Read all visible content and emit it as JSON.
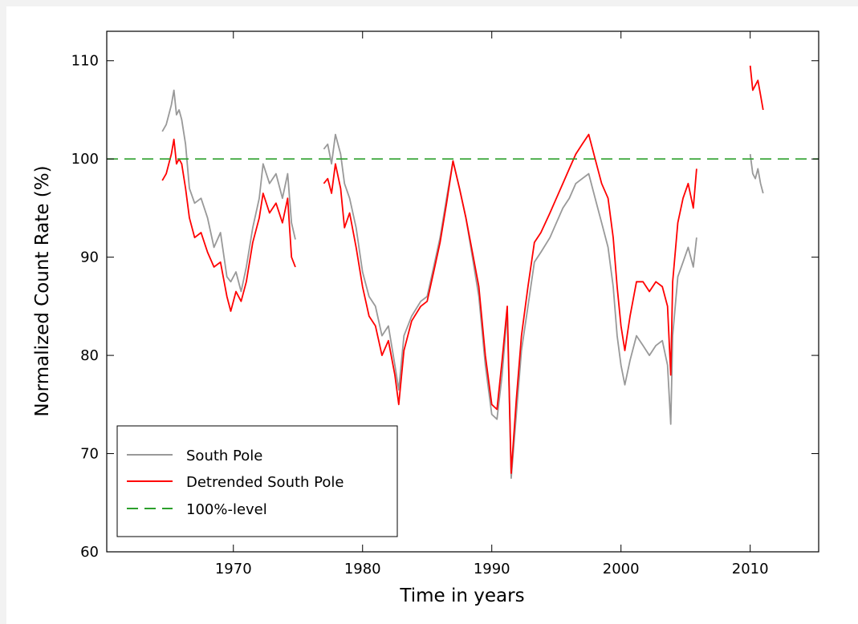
{
  "chart_data": {
    "type": "line",
    "title": "",
    "xlabel": "Time in years",
    "ylabel": "Normalized Count Rate (%)",
    "xlim": [
      1960.2,
      2015.3
    ],
    "ylim": [
      60,
      113
    ],
    "xticks": [
      1970,
      1980,
      1990,
      2000,
      2010
    ],
    "yticks": [
      60,
      70,
      80,
      90,
      100,
      110
    ],
    "grid": false,
    "legend": {
      "position": "bottom-left"
    },
    "reference_line": {
      "name": "100%-level",
      "y": 100,
      "color": "#2ca02c",
      "style": "dashed"
    },
    "series": [
      {
        "name": "South Pole",
        "color": "#999999",
        "segments": [
          [
            [
              1964.5,
              102.8
            ],
            [
              1964.8,
              103.5
            ],
            [
              1965.0,
              104.5
            ],
            [
              1965.2,
              105.5
            ],
            [
              1965.4,
              107.0
            ],
            [
              1965.6,
              104.5
            ],
            [
              1965.8,
              105.0
            ],
            [
              1966.0,
              104.0
            ],
            [
              1966.3,
              101.5
            ],
            [
              1966.6,
              97.0
            ],
            [
              1967.0,
              95.5
            ],
            [
              1967.5,
              96.0
            ],
            [
              1968.0,
              94.0
            ],
            [
              1968.5,
              91.0
            ],
            [
              1969.0,
              92.5
            ],
            [
              1969.5,
              88.0
            ],
            [
              1969.8,
              87.5
            ],
            [
              1970.2,
              88.5
            ],
            [
              1970.6,
              86.5
            ],
            [
              1971.0,
              89.0
            ],
            [
              1971.5,
              93.0
            ],
            [
              1972.0,
              96.0
            ],
            [
              1972.3,
              99.5
            ],
            [
              1972.8,
              97.5
            ],
            [
              1973.3,
              98.5
            ],
            [
              1973.8,
              96.0
            ],
            [
              1974.2,
              98.5
            ],
            [
              1974.5,
              93.5
            ],
            [
              1974.8,
              91.8
            ]
          ],
          [
            [
              1977.0,
              101.0
            ],
            [
              1977.3,
              101.5
            ],
            [
              1977.6,
              99.5
            ],
            [
              1977.9,
              102.5
            ],
            [
              1978.3,
              100.5
            ],
            [
              1978.6,
              97.5
            ],
            [
              1979.0,
              96.0
            ],
            [
              1979.5,
              93.0
            ],
            [
              1980.0,
              88.5
            ],
            [
              1980.5,
              86.0
            ],
            [
              1981.0,
              85.0
            ],
            [
              1981.5,
              82.0
            ],
            [
              1982.0,
              83.0
            ],
            [
              1982.5,
              79.0
            ],
            [
              1982.8,
              76.5
            ],
            [
              1983.2,
              82.0
            ],
            [
              1983.8,
              84.0
            ],
            [
              1984.5,
              85.5
            ],
            [
              1985.0,
              86.0
            ],
            [
              1985.5,
              89.0
            ],
            [
              1986.0,
              92.0
            ],
            [
              1986.5,
              96.0
            ],
            [
              1987.0,
              99.8
            ],
            [
              1987.5,
              97.0
            ],
            [
              1988.0,
              94.0
            ],
            [
              1988.5,
              90.0
            ],
            [
              1989.0,
              86.0
            ],
            [
              1989.5,
              79.0
            ],
            [
              1990.0,
              74.0
            ],
            [
              1990.4,
              73.5
            ],
            [
              1990.8,
              78.0
            ],
            [
              1991.2,
              84.5
            ],
            [
              1991.5,
              67.5
            ],
            [
              1991.9,
              74.0
            ],
            [
              1992.3,
              80.5
            ],
            [
              1992.8,
              85.0
            ],
            [
              1993.3,
              89.5
            ],
            [
              1993.8,
              90.5
            ],
            [
              1994.5,
              92.0
            ],
            [
              1995.0,
              93.5
            ],
            [
              1995.5,
              95.0
            ],
            [
              1996.0,
              96.0
            ],
            [
              1996.5,
              97.5
            ],
            [
              1997.0,
              98.0
            ],
            [
              1997.5,
              98.5
            ],
            [
              1998.0,
              96.0
            ],
            [
              1998.5,
              93.5
            ],
            [
              1999.0,
              91.0
            ],
            [
              1999.4,
              87.0
            ],
            [
              1999.7,
              82.0
            ],
            [
              2000.0,
              79.0
            ],
            [
              2000.3,
              77.0
            ],
            [
              2000.7,
              79.5
            ],
            [
              2001.2,
              82.0
            ],
            [
              2001.7,
              81.0
            ],
            [
              2002.2,
              80.0
            ],
            [
              2002.7,
              81.0
            ],
            [
              2003.2,
              81.5
            ],
            [
              2003.6,
              79.0
            ],
            [
              2003.85,
              73.0
            ],
            [
              2004.0,
              82.0
            ],
            [
              2004.4,
              88.0
            ],
            [
              2004.8,
              89.5
            ],
            [
              2005.2,
              91.0
            ],
            [
              2005.6,
              89.0
            ],
            [
              2005.85,
              92.0
            ]
          ],
          [
            [
              2010.0,
              100.5
            ],
            [
              2010.2,
              98.5
            ],
            [
              2010.4,
              98.0
            ],
            [
              2010.6,
              99.0
            ],
            [
              2010.8,
              97.5
            ],
            [
              2011.0,
              96.5
            ]
          ]
        ]
      },
      {
        "name": "Detrended South Pole",
        "color": "#ff0000",
        "segments": [
          [
            [
              1964.5,
              97.8
            ],
            [
              1964.8,
              98.5
            ],
            [
              1965.0,
              99.5
            ],
            [
              1965.2,
              100.5
            ],
            [
              1965.4,
              102.0
            ],
            [
              1965.6,
              99.5
            ],
            [
              1965.8,
              100.0
            ],
            [
              1966.0,
              99.5
            ],
            [
              1966.3,
              97.0
            ],
            [
              1966.6,
              94.0
            ],
            [
              1967.0,
              92.0
            ],
            [
              1967.5,
              92.5
            ],
            [
              1968.0,
              90.5
            ],
            [
              1968.5,
              89.0
            ],
            [
              1969.0,
              89.5
            ],
            [
              1969.5,
              86.0
            ],
            [
              1969.8,
              84.5
            ],
            [
              1970.2,
              86.5
            ],
            [
              1970.6,
              85.5
            ],
            [
              1971.0,
              87.5
            ],
            [
              1971.5,
              91.5
            ],
            [
              1972.0,
              94.0
            ],
            [
              1972.3,
              96.5
            ],
            [
              1972.8,
              94.5
            ],
            [
              1973.3,
              95.5
            ],
            [
              1973.8,
              93.5
            ],
            [
              1974.2,
              96.0
            ],
            [
              1974.5,
              90.0
            ],
            [
              1974.8,
              89.0
            ]
          ],
          [
            [
              1977.0,
              97.5
            ],
            [
              1977.3,
              98.0
            ],
            [
              1977.6,
              96.5
            ],
            [
              1977.9,
              99.5
            ],
            [
              1978.3,
              97.0
            ],
            [
              1978.6,
              93.0
            ],
            [
              1979.0,
              94.5
            ],
            [
              1979.5,
              91.0
            ],
            [
              1980.0,
              87.0
            ],
            [
              1980.5,
              84.0
            ],
            [
              1981.0,
              83.0
            ],
            [
              1981.5,
              80.0
            ],
            [
              1982.0,
              81.5
            ],
            [
              1982.5,
              78.0
            ],
            [
              1982.8,
              75.0
            ],
            [
              1983.2,
              80.5
            ],
            [
              1983.8,
              83.5
            ],
            [
              1984.5,
              85.0
            ],
            [
              1985.0,
              85.5
            ],
            [
              1985.5,
              88.5
            ],
            [
              1986.0,
              91.5
            ],
            [
              1986.5,
              95.5
            ],
            [
              1987.0,
              99.8
            ],
            [
              1987.5,
              97.0
            ],
            [
              1988.0,
              94.0
            ],
            [
              1988.5,
              90.5
            ],
            [
              1989.0,
              87.0
            ],
            [
              1989.5,
              80.0
            ],
            [
              1990.0,
              75.0
            ],
            [
              1990.4,
              74.5
            ],
            [
              1990.8,
              79.5
            ],
            [
              1991.2,
              85.0
            ],
            [
              1991.5,
              68.0
            ],
            [
              1991.9,
              75.5
            ],
            [
              1992.3,
              82.0
            ],
            [
              1992.8,
              87.0
            ],
            [
              1993.3,
              91.5
            ],
            [
              1993.8,
              92.5
            ],
            [
              1994.5,
              94.5
            ],
            [
              1995.0,
              96.0
            ],
            [
              1995.5,
              97.5
            ],
            [
              1996.0,
              99.0
            ],
            [
              1996.5,
              100.5
            ],
            [
              1997.0,
              101.5
            ],
            [
              1997.5,
              102.5
            ],
            [
              1998.0,
              100.0
            ],
            [
              1998.5,
              97.5
            ],
            [
              1999.0,
              96.0
            ],
            [
              1999.4,
              92.0
            ],
            [
              1999.7,
              87.0
            ],
            [
              2000.0,
              83.0
            ],
            [
              2000.3,
              80.5
            ],
            [
              2000.7,
              84.0
            ],
            [
              2001.2,
              87.5
            ],
            [
              2001.7,
              87.5
            ],
            [
              2002.2,
              86.5
            ],
            [
              2002.7,
              87.5
            ],
            [
              2003.2,
              87.0
            ],
            [
              2003.6,
              85.0
            ],
            [
              2003.85,
              78.0
            ],
            [
              2004.0,
              87.5
            ],
            [
              2004.4,
              93.5
            ],
            [
              2004.8,
              96.0
            ],
            [
              2005.2,
              97.5
            ],
            [
              2005.6,
              95.0
            ],
            [
              2005.85,
              99.0
            ]
          ],
          [
            [
              2010.0,
              109.5
            ],
            [
              2010.2,
              107.0
            ],
            [
              2010.4,
              107.5
            ],
            [
              2010.6,
              108.0
            ],
            [
              2010.8,
              106.5
            ],
            [
              2011.0,
              105.0
            ]
          ]
        ]
      }
    ]
  }
}
